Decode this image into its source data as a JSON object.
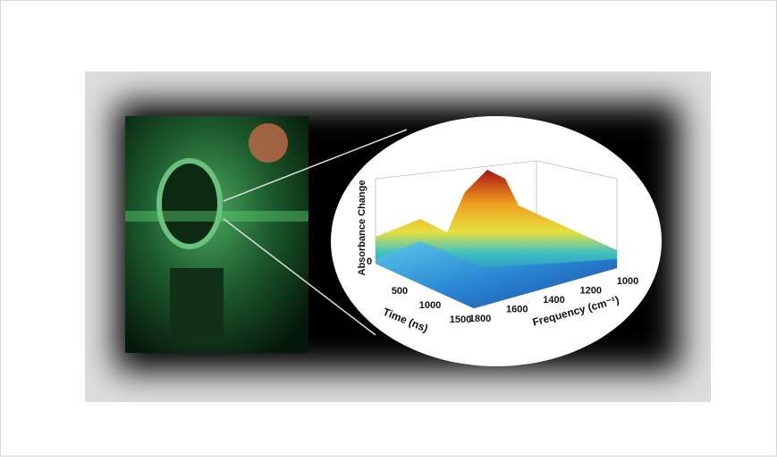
{
  "figure": {
    "plot": {
      "z_label": "Absorbance Change",
      "x_label": "Time (ns)",
      "y_label": "Frequency (cm⁻¹)",
      "z_ticks": [
        0
      ],
      "time_ticks": [
        500,
        1000,
        1500
      ],
      "frequency_ticks": [
        1800,
        1600,
        1400,
        1200,
        1000
      ]
    }
  }
}
